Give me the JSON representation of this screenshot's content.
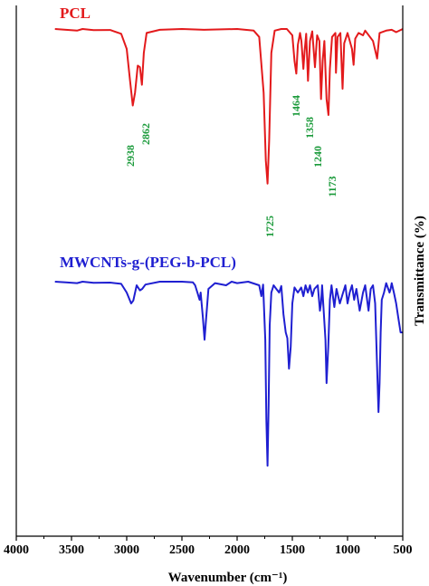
{
  "chart_data": {
    "type": "line",
    "title": "",
    "xlabel": "Wavenumber (cm⁻¹)",
    "ylabel": "Transmittance (%)",
    "xlim": [
      4000,
      500
    ],
    "x_reversed": true,
    "x_ticks": [
      4000,
      3500,
      3000,
      2500,
      2000,
      1500,
      1000,
      500
    ],
    "y_ticks_shown": false,
    "grid": false,
    "legend": "none",
    "series": [
      {
        "name": "PCL",
        "color": "#e31a1c",
        "points": [
          [
            3650,
            0.0
          ],
          [
            3550,
            0.01
          ],
          [
            3450,
            0.02
          ],
          [
            3400,
            0.0
          ],
          [
            3300,
            0.015
          ],
          [
            3150,
            0.012
          ],
          [
            3050,
            0.06
          ],
          [
            3000,
            0.25
          ],
          [
            2970,
            0.65
          ],
          [
            2945,
            0.96
          ],
          [
            2925,
            0.8
          ],
          [
            2900,
            0.46
          ],
          [
            2880,
            0.48
          ],
          [
            2862,
            0.7
          ],
          [
            2845,
            0.3
          ],
          [
            2820,
            0.05
          ],
          [
            2700,
            0.01
          ],
          [
            2500,
            0.0
          ],
          [
            2300,
            0.01
          ],
          [
            2000,
            0.0
          ],
          [
            1850,
            0.02
          ],
          [
            1800,
            0.1
          ],
          [
            1760,
            0.8
          ],
          [
            1740,
            1.65
          ],
          [
            1725,
            1.94
          ],
          [
            1710,
            1.4
          ],
          [
            1690,
            0.3
          ],
          [
            1660,
            0.02
          ],
          [
            1600,
            0.0
          ],
          [
            1550,
            0.0
          ],
          [
            1500,
            0.08
          ],
          [
            1480,
            0.4
          ],
          [
            1464,
            0.56
          ],
          [
            1450,
            0.2
          ],
          [
            1430,
            0.05
          ],
          [
            1418,
            0.15
          ],
          [
            1400,
            0.5
          ],
          [
            1390,
            0.3
          ],
          [
            1375,
            0.06
          ],
          [
            1358,
            0.65
          ],
          [
            1340,
            0.15
          ],
          [
            1320,
            0.03
          ],
          [
            1295,
            0.48
          ],
          [
            1275,
            0.08
          ],
          [
            1255,
            0.15
          ],
          [
            1240,
            0.88
          ],
          [
            1225,
            0.4
          ],
          [
            1210,
            0.15
          ],
          [
            1190,
            0.88
          ],
          [
            1173,
            1.08
          ],
          [
            1160,
            0.5
          ],
          [
            1140,
            0.1
          ],
          [
            1110,
            0.05
          ],
          [
            1105,
            0.55
          ],
          [
            1090,
            0.1
          ],
          [
            1065,
            0.05
          ],
          [
            1045,
            0.75
          ],
          [
            1030,
            0.18
          ],
          [
            1000,
            0.05
          ],
          [
            960,
            0.25
          ],
          [
            945,
            0.45
          ],
          [
            930,
            0.12
          ],
          [
            900,
            0.05
          ],
          [
            860,
            0.08
          ],
          [
            840,
            0.02
          ],
          [
            770,
            0.15
          ],
          [
            732,
            0.37
          ],
          [
            710,
            0.05
          ],
          [
            650,
            0.02
          ],
          [
            600,
            0.01
          ],
          [
            560,
            0.04
          ],
          [
            500,
            0.0
          ]
        ]
      },
      {
        "name": "MWCNTs-g-(PEG-b-PCL)",
        "color": "#1f1fd1",
        "points": [
          [
            3650,
            0.0
          ],
          [
            3550,
            0.01
          ],
          [
            3450,
            0.02
          ],
          [
            3400,
            0.0
          ],
          [
            3300,
            0.015
          ],
          [
            3150,
            0.012
          ],
          [
            3050,
            0.03
          ],
          [
            3000,
            0.15
          ],
          [
            2960,
            0.3
          ],
          [
            2940,
            0.26
          ],
          [
            2910,
            0.05
          ],
          [
            2880,
            0.12
          ],
          [
            2860,
            0.1
          ],
          [
            2830,
            0.04
          ],
          [
            2700,
            0.0
          ],
          [
            2500,
            0.0
          ],
          [
            2400,
            0.01
          ],
          [
            2380,
            0.05
          ],
          [
            2360,
            0.15
          ],
          [
            2340,
            0.25
          ],
          [
            2330,
            0.15
          ],
          [
            2310,
            0.5
          ],
          [
            2295,
            0.8
          ],
          [
            2280,
            0.5
          ],
          [
            2260,
            0.1
          ],
          [
            2200,
            0.02
          ],
          [
            2100,
            0.05
          ],
          [
            2050,
            0.0
          ],
          [
            2000,
            0.02
          ],
          [
            1900,
            0.0
          ],
          [
            1800,
            0.05
          ],
          [
            1780,
            0.2
          ],
          [
            1765,
            0.04
          ],
          [
            1745,
            0.8
          ],
          [
            1735,
            1.9
          ],
          [
            1725,
            2.54
          ],
          [
            1715,
            1.7
          ],
          [
            1705,
            0.6
          ],
          [
            1690,
            0.15
          ],
          [
            1670,
            0.05
          ],
          [
            1645,
            0.1
          ],
          [
            1620,
            0.15
          ],
          [
            1600,
            0.06
          ],
          [
            1580,
            0.45
          ],
          [
            1560,
            0.7
          ],
          [
            1545,
            0.78
          ],
          [
            1530,
            1.2
          ],
          [
            1515,
            0.9
          ],
          [
            1500,
            0.3
          ],
          [
            1480,
            0.08
          ],
          [
            1450,
            0.15
          ],
          [
            1420,
            0.08
          ],
          [
            1400,
            0.2
          ],
          [
            1380,
            0.05
          ],
          [
            1360,
            0.15
          ],
          [
            1340,
            0.05
          ],
          [
            1320,
            0.2
          ],
          [
            1300,
            0.1
          ],
          [
            1270,
            0.05
          ],
          [
            1250,
            0.4
          ],
          [
            1240,
            0.3
          ],
          [
            1230,
            0.05
          ],
          [
            1200,
            0.8
          ],
          [
            1190,
            1.4
          ],
          [
            1175,
            0.9
          ],
          [
            1160,
            0.25
          ],
          [
            1145,
            0.05
          ],
          [
            1120,
            0.35
          ],
          [
            1100,
            0.1
          ],
          [
            1070,
            0.3
          ],
          [
            1040,
            0.15
          ],
          [
            1020,
            0.05
          ],
          [
            1000,
            0.3
          ],
          [
            980,
            0.15
          ],
          [
            960,
            0.05
          ],
          [
            940,
            0.25
          ],
          [
            920,
            0.1
          ],
          [
            890,
            0.4
          ],
          [
            860,
            0.15
          ],
          [
            840,
            0.05
          ],
          [
            810,
            0.4
          ],
          [
            790,
            0.1
          ],
          [
            770,
            0.05
          ],
          [
            750,
            0.3
          ],
          [
            720,
            1.8
          ],
          [
            710,
            1.4
          ],
          [
            700,
            0.7
          ],
          [
            690,
            0.25
          ],
          [
            670,
            0.15
          ],
          [
            650,
            0.02
          ],
          [
            620,
            0.15
          ],
          [
            610,
            0.1
          ],
          [
            600,
            0.02
          ],
          [
            580,
            0.15
          ],
          [
            560,
            0.3
          ],
          [
            540,
            0.5
          ],
          [
            520,
            0.7
          ],
          [
            500,
            0.7
          ]
        ]
      }
    ],
    "annotations": [
      {
        "text": "2938",
        "series": "PCL"
      },
      {
        "text": "2862",
        "series": "PCL"
      },
      {
        "text": "1725",
        "series": "PCL"
      },
      {
        "text": "1464",
        "series": "PCL"
      },
      {
        "text": "1358",
        "series": "PCL"
      },
      {
        "text": "1240",
        "series": "PCL"
      },
      {
        "text": "1173",
        "series": "PCL"
      }
    ]
  }
}
